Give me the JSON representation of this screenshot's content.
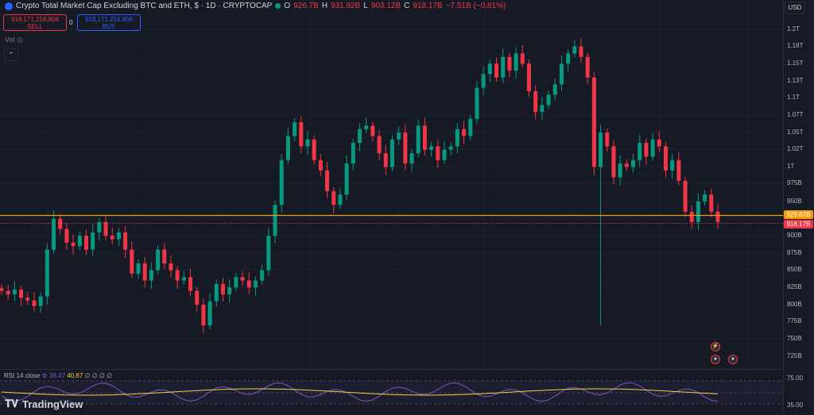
{
  "header": {
    "title": "Crypto Total Market Cap Excluding BTC and ETH, $ · 1D · CRYPTOCAP",
    "o_label": "O",
    "o_val": "926.7B",
    "h_label": "H",
    "h_val": "931.92B",
    "l_label": "L",
    "l_val": "903.12B",
    "c_label": "C",
    "c_val": "918.17B",
    "change": "−7.51B (−0.81%)"
  },
  "trade": {
    "sell_price": "918,171,216,806",
    "sell_label": "SELL",
    "buy_price": "918,171,216,806",
    "buy_label": "BUY",
    "spread": "0"
  },
  "vol_label": "Vol",
  "currency": "USD",
  "price_axis": [
    "1.2T",
    "1.18T",
    "1.15T",
    "1.13T",
    "1.1T",
    "1.07T",
    "1.05T",
    "1.02T",
    "1T",
    "975B",
    "950B",
    "900B",
    "875B",
    "850B",
    "825B",
    "800B",
    "775B",
    "750B",
    "725B"
  ],
  "badges": {
    "alert": "929.67B",
    "last": "918.17B"
  },
  "rsi": {
    "label": "RSI 14 close",
    "v1": "38.47",
    "v2": "40.67",
    "rest": "∅ ∅ ∅ ∅",
    "axis_top": "75.00",
    "axis_bottom": "35.00"
  },
  "brand": "TradingView",
  "colors": {
    "up": "#089981",
    "down": "#f23645",
    "alert_line": "#f59e0b",
    "rsi": "#7e57c2",
    "rsi_ma": "#f7d046"
  },
  "chart_data": {
    "type": "candlestick",
    "y_range": [
      715,
      1210
    ],
    "unit": "B",
    "closes": [
      820,
      815,
      822,
      810,
      806,
      798,
      812,
      880,
      925,
      910,
      890,
      885,
      900,
      880,
      905,
      920,
      900,
      895,
      905,
      880,
      845,
      860,
      835,
      850,
      880,
      860,
      850,
      835,
      840,
      820,
      800,
      770,
      805,
      830,
      815,
      825,
      840,
      835,
      825,
      835,
      850,
      900,
      945,
      1010,
      1045,
      1065,
      1030,
      1040,
      1010,
      995,
      965,
      945,
      960,
      1005,
      1035,
      1055,
      1060,
      1045,
      1020,
      1000,
      1040,
      1050,
      1005,
      1020,
      1060,
      1025,
      1030,
      1010,
      1025,
      1030,
      1055,
      1045,
      1070,
      1115,
      1135,
      1150,
      1130,
      1160,
      1140,
      1165,
      1150,
      1110,
      1080,
      1090,
      1105,
      1120,
      1150,
      1165,
      1175,
      1160,
      1130,
      1000,
      1050,
      1030,
      985,
      1005,
      1000,
      1010,
      1035,
      1015,
      1040,
      1030,
      995,
      1010,
      980,
      935,
      920,
      950,
      960,
      935,
      920
    ]
  }
}
